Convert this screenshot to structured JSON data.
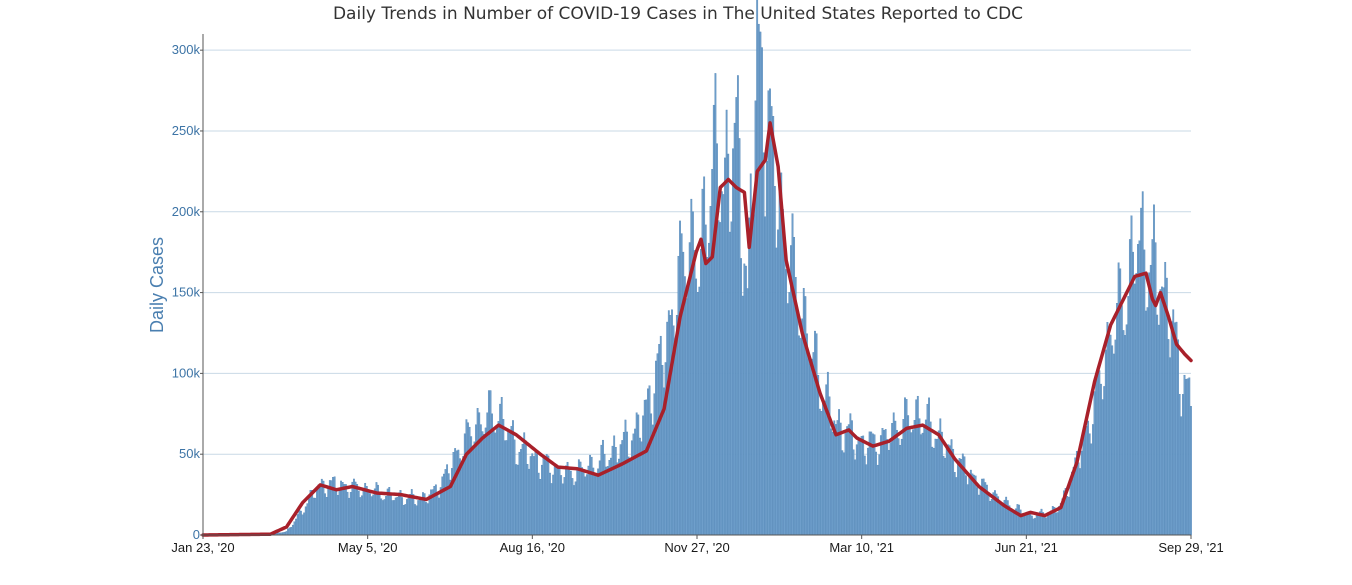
{
  "chart_data": {
    "type": "bar",
    "title": "Daily Trends in Number of COVID-19 Cases in The United States Reported to CDC",
    "xlabel": "",
    "ylabel": "Daily Cases",
    "ylim": [
      0,
      310000
    ],
    "y_ticks": [
      0,
      50000,
      100000,
      150000,
      200000,
      250000,
      300000
    ],
    "y_tick_labels": [
      "0",
      "50k",
      "100k",
      "150k",
      "200k",
      "250k",
      "300k"
    ],
    "x_tick_labels": [
      "Jan 23, '20",
      "May 5, '20",
      "Aug 16, '20",
      "Nov 27, '20",
      "Mar 10, '21",
      "Jun 21, '21",
      "Sep 29, '21"
    ],
    "x_start": "2020-01-23",
    "x_end": "2021-09-29",
    "grid": true,
    "legend": "none",
    "colors": {
      "bars": "#6f9fcb",
      "bar_stroke": "#4f83b4",
      "moving_average": "#a8202a",
      "gridline": "#c9d9e6",
      "axis": "#555555"
    },
    "series": [
      {
        "name": "",
        "kind": "bar",
        "x": [
          "2020-03-01",
          "2020-03-15",
          "2020-03-25",
          "2020-04-01",
          "2020-04-10",
          "2020-04-20",
          "2020-05-05",
          "2020-05-20",
          "2020-06-05",
          "2020-06-15",
          "2020-06-25",
          "2020-07-05",
          "2020-07-15",
          "2020-07-25",
          "2020-08-05",
          "2020-08-20",
          "2020-09-05",
          "2020-09-15",
          "2020-09-25",
          "2020-10-05",
          "2020-10-20",
          "2020-11-01",
          "2020-11-10",
          "2020-11-20",
          "2020-11-27",
          "2020-12-05",
          "2020-12-12",
          "2020-12-20",
          "2020-12-27",
          "2021-01-02",
          "2021-01-08",
          "2021-01-15",
          "2021-01-22",
          "2021-02-01",
          "2021-02-10",
          "2021-02-20",
          "2021-03-01",
          "2021-03-10",
          "2021-03-20",
          "2021-04-01",
          "2021-04-12",
          "2021-04-22",
          "2021-05-05",
          "2021-05-20",
          "2021-06-05",
          "2021-06-21",
          "2021-07-01",
          "2021-07-10",
          "2021-07-20",
          "2021-07-31",
          "2021-08-10",
          "2021-08-20",
          "2021-08-27",
          "2021-09-05",
          "2021-09-15",
          "2021-09-22",
          "2021-09-29"
        ],
        "values": [
          100,
          2000,
          15000,
          27000,
          32000,
          30000,
          28000,
          24000,
          22000,
          26000,
          42000,
          60000,
          72000,
          75000,
          55000,
          45000,
          38000,
          40000,
          45000,
          52000,
          65000,
          100000,
          135000,
          185000,
          165000,
          232000,
          218000,
          245000,
          150000,
          295000,
          260000,
          210000,
          170000,
          130000,
          95000,
          68000,
          62000,
          55000,
          58000,
          68000,
          75000,
          65000,
          48000,
          32000,
          20000,
          12000,
          13000,
          18000,
          45000,
          80000,
          125000,
          150000,
          185000,
          165000,
          145000,
          100000,
          85000
        ]
      },
      {
        "name": "",
        "kind": "line",
        "x": [
          "2020-01-23",
          "2020-03-05",
          "2020-03-15",
          "2020-03-25",
          "2020-04-05",
          "2020-04-15",
          "2020-04-25",
          "2020-05-10",
          "2020-05-25",
          "2020-06-10",
          "2020-06-25",
          "2020-07-05",
          "2020-07-15",
          "2020-07-25",
          "2020-08-05",
          "2020-08-20",
          "2020-08-31",
          "2020-09-12",
          "2020-09-25",
          "2020-10-10",
          "2020-10-25",
          "2020-11-05",
          "2020-11-15",
          "2020-11-25",
          "2020-11-28",
          "2020-12-01",
          "2020-12-05",
          "2020-12-10",
          "2020-12-15",
          "2020-12-20",
          "2020-12-25",
          "2020-12-28",
          "2021-01-02",
          "2021-01-07",
          "2021-01-10",
          "2021-01-15",
          "2021-01-20",
          "2021-01-30",
          "2021-02-10",
          "2021-02-20",
          "2021-02-28",
          "2021-03-05",
          "2021-03-15",
          "2021-03-25",
          "2021-04-05",
          "2021-04-15",
          "2021-04-25",
          "2021-05-05",
          "2021-05-20",
          "2021-06-05",
          "2021-06-15",
          "2021-06-21",
          "2021-06-30",
          "2021-07-10",
          "2021-07-20",
          "2021-07-31",
          "2021-08-10",
          "2021-08-20",
          "2021-08-25",
          "2021-09-01",
          "2021-09-05",
          "2021-09-07",
          "2021-09-10",
          "2021-09-15",
          "2021-09-20",
          "2021-09-25",
          "2021-09-29"
        ],
        "values": [
          0,
          500,
          5000,
          20000,
          31000,
          28000,
          30000,
          26000,
          25000,
          22000,
          30000,
          50000,
          60000,
          68000,
          62000,
          50000,
          42000,
          41000,
          37000,
          44000,
          52000,
          78000,
          135000,
          175000,
          183000,
          168000,
          172000,
          215000,
          220000,
          215000,
          212000,
          178000,
          225000,
          232000,
          255000,
          228000,
          170000,
          125000,
          88000,
          62000,
          65000,
          60000,
          55000,
          58000,
          66000,
          68000,
          62000,
          47000,
          30000,
          18000,
          12000,
          14000,
          12000,
          17000,
          45000,
          95000,
          130000,
          150000,
          160000,
          162000,
          146000,
          142000,
          150000,
          135000,
          118000,
          112000,
          108000
        ]
      }
    ]
  }
}
